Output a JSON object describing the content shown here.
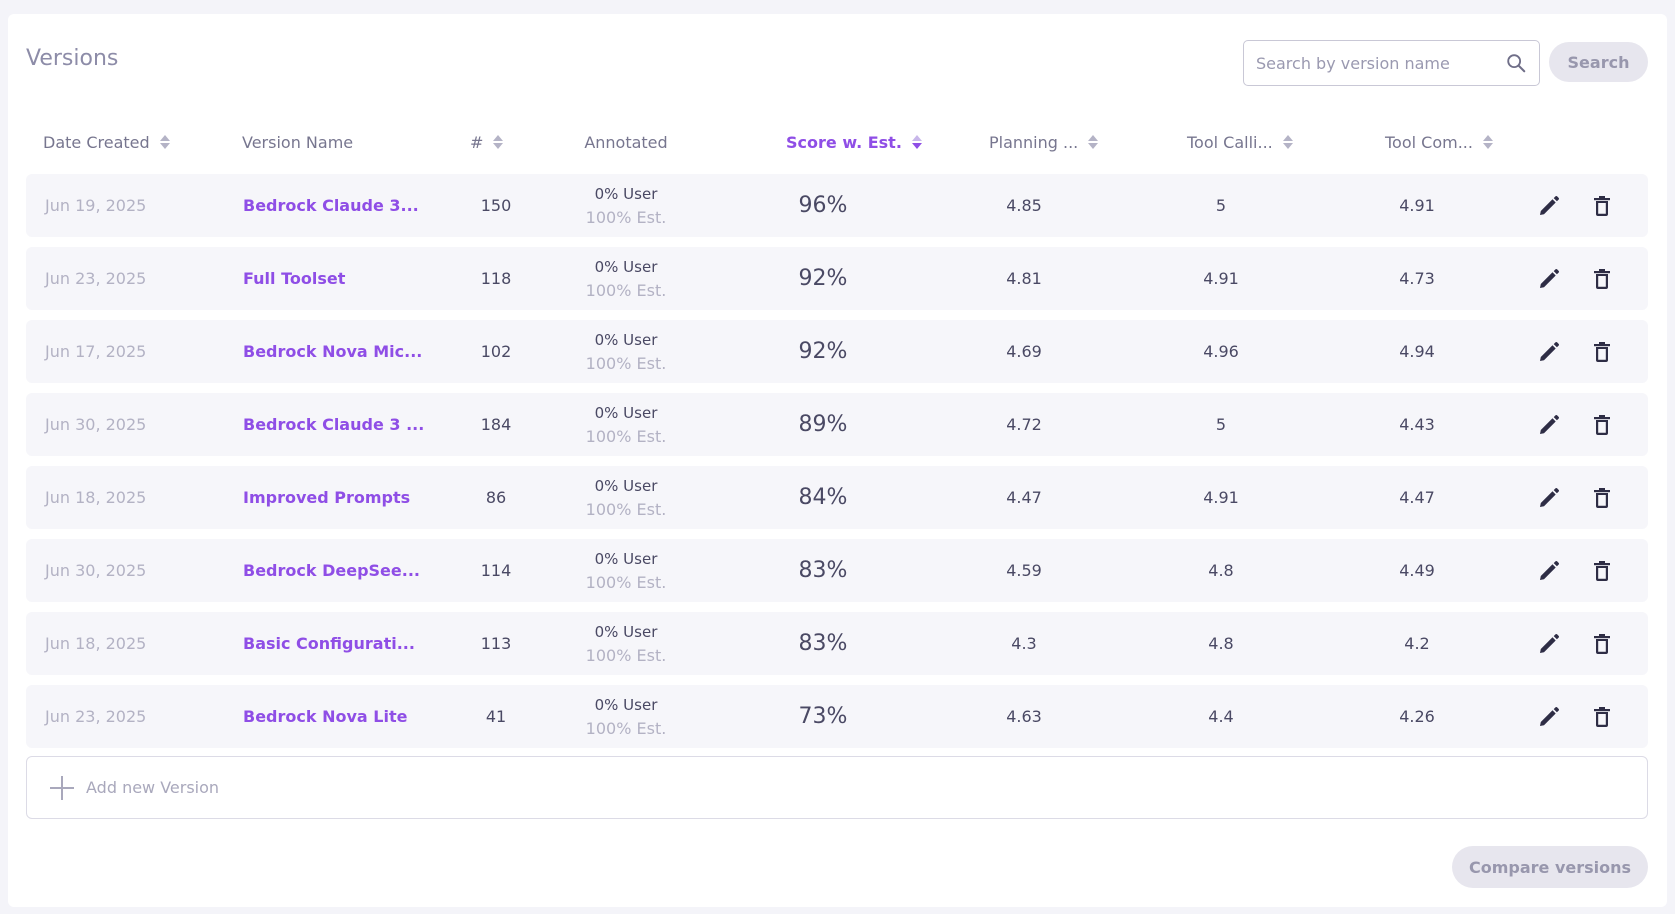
{
  "page": {
    "title": "Versions"
  },
  "search": {
    "placeholder": "Search by version name",
    "value": "",
    "button_label": "Search"
  },
  "table": {
    "columns": [
      {
        "label": "Date Created",
        "sortable": true,
        "active": false
      },
      {
        "label": "Version Name",
        "sortable": false,
        "active": false
      },
      {
        "label": "#",
        "sortable": true,
        "active": false
      },
      {
        "label": "Annotated",
        "sortable": false,
        "active": false
      },
      {
        "label": "Score w. Est.",
        "sortable": true,
        "active": true,
        "sort_direction": "desc"
      },
      {
        "label": "Planning ...",
        "sortable": true,
        "active": false
      },
      {
        "label": "Tool Calli...",
        "sortable": true,
        "active": false
      },
      {
        "label": "Tool Com...",
        "sortable": true,
        "active": false
      }
    ],
    "rows": [
      {
        "date": "Jun 19, 2025",
        "name": "Bedrock Claude 3...",
        "count": "150",
        "user": "0% User",
        "est": "100% Est.",
        "score": "96%",
        "planning": "4.85",
        "calling": "5",
        "completion": "4.91"
      },
      {
        "date": "Jun 23, 2025",
        "name": "Full Toolset",
        "count": "118",
        "user": "0% User",
        "est": "100% Est.",
        "score": "92%",
        "planning": "4.81",
        "calling": "4.91",
        "completion": "4.73"
      },
      {
        "date": "Jun 17, 2025",
        "name": "Bedrock Nova Mic...",
        "count": "102",
        "user": "0% User",
        "est": "100% Est.",
        "score": "92%",
        "planning": "4.69",
        "calling": "4.96",
        "completion": "4.94"
      },
      {
        "date": "Jun 30, 2025",
        "name": "Bedrock Claude 3 ...",
        "count": "184",
        "user": "0% User",
        "est": "100% Est.",
        "score": "89%",
        "planning": "4.72",
        "calling": "5",
        "completion": "4.43"
      },
      {
        "date": "Jun 18, 2025",
        "name": "Improved Prompts",
        "count": "86",
        "user": "0% User",
        "est": "100% Est.",
        "score": "84%",
        "planning": "4.47",
        "calling": "4.91",
        "completion": "4.47"
      },
      {
        "date": "Jun 30, 2025",
        "name": "Bedrock DeepSee...",
        "count": "114",
        "user": "0% User",
        "est": "100% Est.",
        "score": "83%",
        "planning": "4.59",
        "calling": "4.8",
        "completion": "4.49"
      },
      {
        "date": "Jun 18, 2025",
        "name": "Basic Configurati...",
        "count": "113",
        "user": "0% User",
        "est": "100% Est.",
        "score": "83%",
        "planning": "4.3",
        "calling": "4.8",
        "completion": "4.2"
      },
      {
        "date": "Jun 23, 2025",
        "name": "Bedrock Nova Lite",
        "count": "41",
        "user": "0% User",
        "est": "100% Est.",
        "score": "73%",
        "planning": "4.63",
        "calling": "4.4",
        "completion": "4.26"
      }
    ]
  },
  "add_version": {
    "label": "Add new Version"
  },
  "compare": {
    "label": "Compare versions"
  },
  "icons": {
    "search": "search-icon",
    "sort": "sort-icon",
    "edit": "pencil-icon",
    "delete": "trash-icon",
    "add": "plus-icon"
  },
  "colors": {
    "accent": "#8f4ee6",
    "muted_text": "#b3b2c4",
    "row_bg": "#f6f6fa",
    "button_bg": "#e7e6ee",
    "page_bg": "#f4f4f9"
  }
}
